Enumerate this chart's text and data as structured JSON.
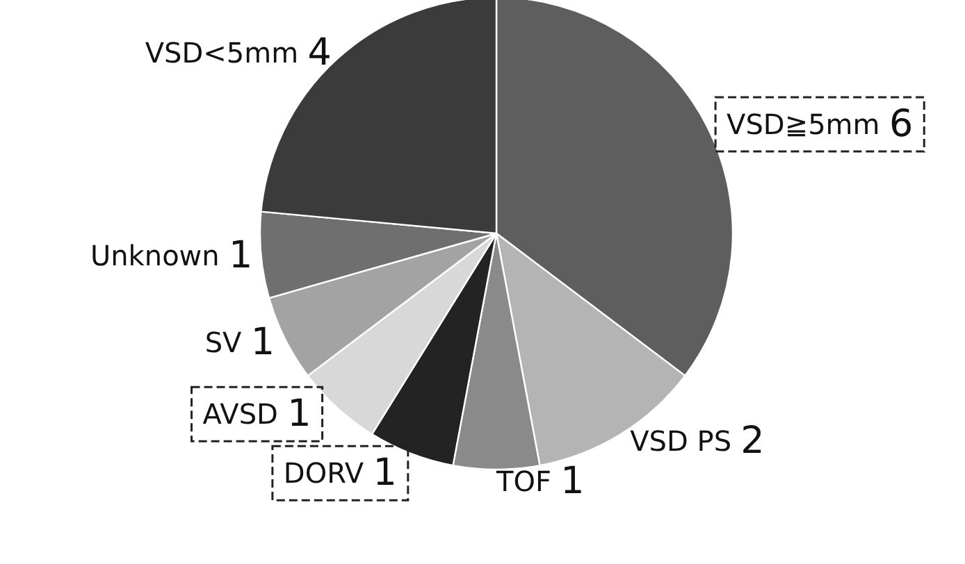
{
  "chart_data": {
    "type": "pie",
    "categories": [
      "VSD≧5mm",
      "VSD PS",
      "TOF",
      "DORV",
      "AVSD",
      "SV",
      "Unknown",
      "VSD<5mm"
    ],
    "values": [
      6,
      2,
      1,
      1,
      1,
      1,
      1,
      4
    ],
    "colors": [
      "#5e5e5e",
      "#b4b4b4",
      "#8a8a8a",
      "#232323",
      "#d8d8d8",
      "#a3a3a3",
      "#6f6f6f",
      "#3b3b3b"
    ],
    "data_labels": true
  }
}
